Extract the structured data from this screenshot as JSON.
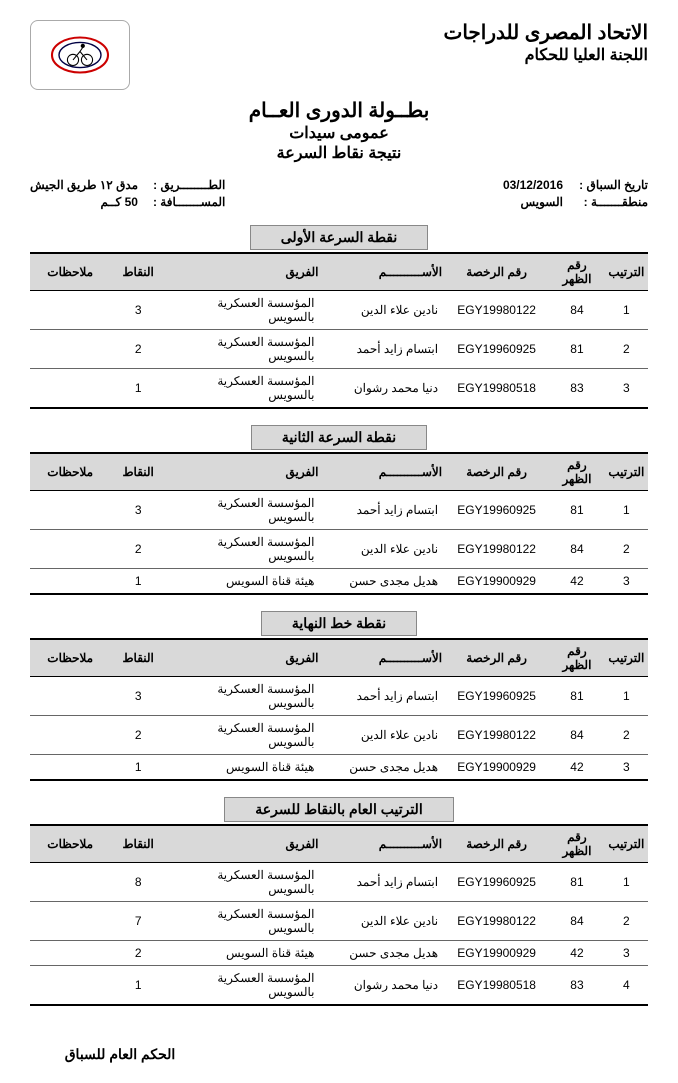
{
  "header": {
    "org_main": "الاتحاد المصرى للدراجات",
    "org_sub": "اللجنة العليا للحكام"
  },
  "titles": {
    "t1": "بطــولة الدورى العــام",
    "t2": "عمومى سيدات",
    "t3": "نتيجة نقاط السرعة"
  },
  "meta": {
    "date_label": "تاريخ السباق :",
    "date_value": "03/12/2016",
    "region_label": "منطقـــــــة :",
    "region_value": "السويس",
    "road_label": "الطــــــــريق :",
    "road_value": "مدق ١٢ طريق الجيش",
    "dist_label": "المســـــــافة :",
    "dist_value": "50 كــم"
  },
  "columns": {
    "rank": "الترتيب",
    "bib": "رقم الظهر",
    "license": "رقم الرخصة",
    "name": "الأســــــــــم",
    "team": "الفريق",
    "points": "النقاط",
    "notes": "ملاحظات"
  },
  "sections": [
    {
      "title": "نقطة السرعة الأولى",
      "rows": [
        {
          "rank": "1",
          "bib": "84",
          "lic": "EGY19980122",
          "name": "نادين علاء الدين",
          "team": "المؤسسة العسكرية بالسويس",
          "pts": "3",
          "notes": ""
        },
        {
          "rank": "2",
          "bib": "81",
          "lic": "EGY19960925",
          "name": "ابتسام زايد أحمد",
          "team": "المؤسسة العسكرية بالسويس",
          "pts": "2",
          "notes": ""
        },
        {
          "rank": "3",
          "bib": "83",
          "lic": "EGY19980518",
          "name": "دنيا محمد رشوان",
          "team": "المؤسسة العسكرية بالسويس",
          "pts": "1",
          "notes": ""
        }
      ]
    },
    {
      "title": "نقطة السرعة الثانية",
      "rows": [
        {
          "rank": "1",
          "bib": "81",
          "lic": "EGY19960925",
          "name": "ابتسام زايد أحمد",
          "team": "المؤسسة العسكرية بالسويس",
          "pts": "3",
          "notes": ""
        },
        {
          "rank": "2",
          "bib": "84",
          "lic": "EGY19980122",
          "name": "نادين علاء الدين",
          "team": "المؤسسة العسكرية بالسويس",
          "pts": "2",
          "notes": ""
        },
        {
          "rank": "3",
          "bib": "42",
          "lic": "EGY19900929",
          "name": "هديل مجدى حسن",
          "team": "هيئة قناة السويس",
          "pts": "1",
          "notes": ""
        }
      ]
    },
    {
      "title": "نقطة خط النهاية",
      "rows": [
        {
          "rank": "1",
          "bib": "81",
          "lic": "EGY19960925",
          "name": "ابتسام زايد أحمد",
          "team": "المؤسسة العسكرية بالسويس",
          "pts": "3",
          "notes": ""
        },
        {
          "rank": "2",
          "bib": "84",
          "lic": "EGY19980122",
          "name": "نادين علاء الدين",
          "team": "المؤسسة العسكرية بالسويس",
          "pts": "2",
          "notes": ""
        },
        {
          "rank": "3",
          "bib": "42",
          "lic": "EGY19900929",
          "name": "هديل مجدى حسن",
          "team": "هيئة قناة السويس",
          "pts": "1",
          "notes": ""
        }
      ]
    },
    {
      "title": "الترتيب العام بالنقاط للسرعة",
      "rows": [
        {
          "rank": "1",
          "bib": "81",
          "lic": "EGY19960925",
          "name": "ابتسام زايد أحمد",
          "team": "المؤسسة العسكرية بالسويس",
          "pts": "8",
          "notes": ""
        },
        {
          "rank": "2",
          "bib": "84",
          "lic": "EGY19980122",
          "name": "نادين علاء الدين",
          "team": "المؤسسة العسكرية بالسويس",
          "pts": "7",
          "notes": ""
        },
        {
          "rank": "3",
          "bib": "42",
          "lic": "EGY19900929",
          "name": "هديل مجدى حسن",
          "team": "هيئة قناة السويس",
          "pts": "2",
          "notes": ""
        },
        {
          "rank": "4",
          "bib": "83",
          "lic": "EGY19980518",
          "name": "دنيا محمد رشوان",
          "team": "المؤسسة العسكرية بالسويس",
          "pts": "1",
          "notes": ""
        }
      ]
    }
  ],
  "footer": "الحكم العام للسباق"
}
